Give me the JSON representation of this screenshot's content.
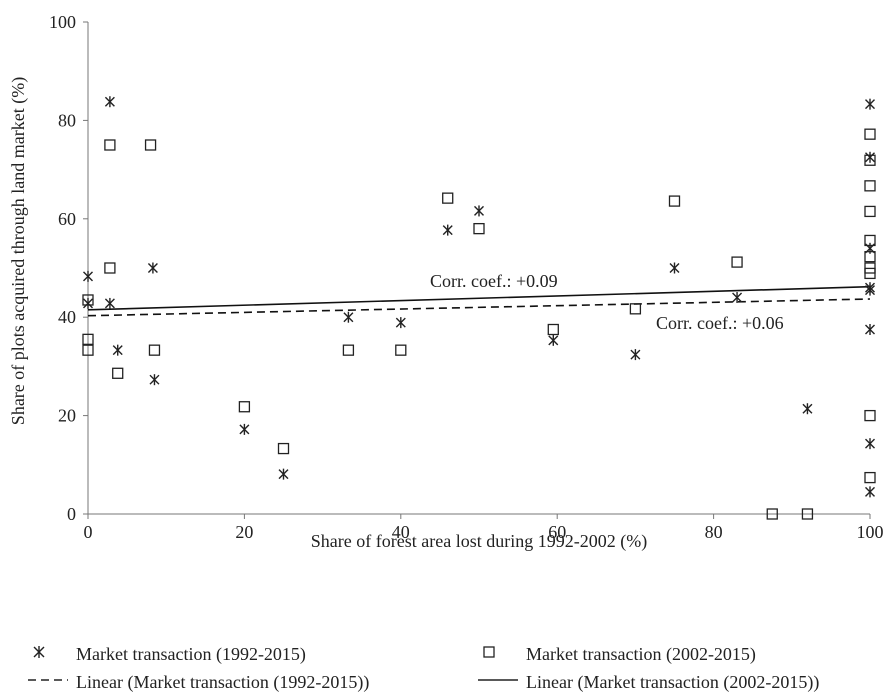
{
  "chart_data": {
    "type": "scatter",
    "xlabel": "Share of forest area lost during 1992-2002 (%)",
    "ylabel": "Share of plots acquired through land market (%)",
    "xlim": [
      0,
      100
    ],
    "ylim": [
      0,
      100
    ],
    "xticks": [
      "0",
      "20",
      "40",
      "60",
      "80",
      "100"
    ],
    "yticks": [
      "0",
      "20",
      "40",
      "60",
      "80",
      "100"
    ],
    "grid": false,
    "legend_position": "bottom",
    "series": [
      {
        "name": "Market transaction (1992-2015)",
        "marker": "asterisk",
        "points": [
          [
            0,
            48.3
          ],
          [
            0,
            42.8
          ],
          [
            2.8,
            83.8
          ],
          [
            2.8,
            42.8
          ],
          [
            3.8,
            33.3
          ],
          [
            8.3,
            50
          ],
          [
            8.5,
            27.3
          ],
          [
            20,
            17.2
          ],
          [
            25,
            8.1
          ],
          [
            33.3,
            40
          ],
          [
            40,
            38.9
          ],
          [
            46,
            57.7
          ],
          [
            50,
            61.6
          ],
          [
            59.5,
            35.3
          ],
          [
            70,
            32.4
          ],
          [
            75,
            50
          ],
          [
            83,
            44
          ],
          [
            92,
            21.4
          ],
          [
            100,
            83.3
          ],
          [
            100,
            72.5
          ],
          [
            100,
            54
          ],
          [
            100,
            46
          ],
          [
            100,
            45.5
          ],
          [
            100,
            37.5
          ],
          [
            100,
            14.3
          ],
          [
            100,
            4.5
          ]
        ]
      },
      {
        "name": "Market transaction (2002-2015)",
        "marker": "square",
        "points": [
          [
            0,
            43.5
          ],
          [
            0,
            35.5
          ],
          [
            0,
            33.3
          ],
          [
            2.8,
            75
          ],
          [
            2.8,
            50
          ],
          [
            3.8,
            28.6
          ],
          [
            8,
            75
          ],
          [
            8.5,
            33.3
          ],
          [
            20,
            21.8
          ],
          [
            25,
            13.3
          ],
          [
            33.3,
            33.3
          ],
          [
            40,
            33.3
          ],
          [
            46,
            64.2
          ],
          [
            50,
            58
          ],
          [
            59.5,
            37.5
          ],
          [
            70,
            41.7
          ],
          [
            75,
            63.6
          ],
          [
            83,
            51.2
          ],
          [
            87.5,
            0
          ],
          [
            92,
            0
          ],
          [
            100,
            77.2
          ],
          [
            100,
            71.9
          ],
          [
            100,
            66.7
          ],
          [
            100,
            61.5
          ],
          [
            100,
            55.6
          ],
          [
            100,
            52.3
          ],
          [
            100,
            50
          ],
          [
            100,
            48.9
          ],
          [
            100,
            20
          ],
          [
            100,
            7.4
          ]
        ]
      }
    ],
    "trendlines": [
      {
        "name": "Linear (Market transaction (1992-2015))",
        "style": "dashed",
        "intercept": 40.3,
        "slope": 0.034
      },
      {
        "name": "Linear (Market transaction (2002-2015))",
        "style": "solid",
        "intercept": 41.5,
        "slope": 0.047
      }
    ],
    "annotations": [
      "Corr. coef.: +0.09",
      "Corr. coef.: +0.06"
    ]
  },
  "legend": {
    "marker_1992": "Market transaction (1992-2015)",
    "marker_2002": "Market transaction (2002-2015)",
    "linear_1992": "Linear (Market transaction (1992-2015))",
    "linear_2002": "Linear (Market transaction (2002-2015))"
  }
}
